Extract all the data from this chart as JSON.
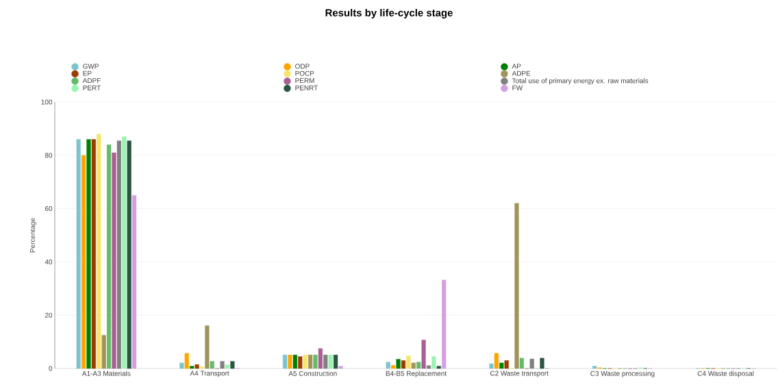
{
  "chart_data": {
    "type": "bar",
    "title": "Results by life-cycle stage",
    "ylabel": "Percentage",
    "categories": [
      "A1-A3 Materials",
      "A4 Transport",
      "A5 Construction",
      "B4-B5 Replacement",
      "C2 Waste transport",
      "C3 Waste processing",
      "C4 Waste disposal"
    ],
    "ylim": [
      0,
      100
    ],
    "yticks": [
      0,
      20,
      40,
      60,
      80,
      100
    ],
    "grid": "y",
    "legend": "top",
    "series": [
      {
        "name": "GWP",
        "color": "#7cc5d0",
        "values": [
          86,
          2.1,
          5.1,
          2.4,
          1.8,
          0.9,
          0
        ]
      },
      {
        "name": "ODP",
        "color": "#ffa500",
        "values": [
          80,
          5.7,
          5.1,
          1.2,
          5.7,
          0.3,
          0
        ]
      },
      {
        "name": "AP",
        "color": "#008000",
        "values": [
          86,
          0.9,
          5.1,
          3.5,
          2.1,
          0,
          0
        ]
      },
      {
        "name": "EP",
        "color": "#9c3d00",
        "values": [
          86,
          1.5,
          4.5,
          3.0,
          3.0,
          0,
          0
        ]
      },
      {
        "name": "POCP",
        "color": "#f5e56b",
        "values": [
          88,
          0.6,
          5.1,
          4.8,
          0,
          0,
          0
        ]
      },
      {
        "name": "ADPE",
        "color": "#a0945a",
        "values": [
          12.5,
          16.1,
          5.1,
          2.1,
          62,
          0,
          0
        ]
      },
      {
        "name": "ADPF",
        "color": "#66bb6a",
        "values": [
          84,
          2.7,
          5.1,
          2.4,
          3.9,
          0,
          0
        ]
      },
      {
        "name": "PERM",
        "color": "#aa5f94",
        "values": [
          81,
          0,
          7.5,
          10.7,
          0,
          0,
          0
        ]
      },
      {
        "name": "Total use of primary energy ex. raw materials",
        "color": "#808080",
        "values": [
          85.5,
          2.7,
          5.1,
          1.1,
          3.6,
          0,
          0
        ]
      },
      {
        "name": "PERT",
        "color": "#98f5b0",
        "values": [
          87,
          1.4,
          5.1,
          4.5,
          0,
          0.3,
          0
        ]
      },
      {
        "name": "PENRT",
        "color": "#2a5540",
        "values": [
          85.5,
          2.7,
          5.1,
          0.9,
          3.9,
          0,
          0
        ]
      },
      {
        "name": "FW",
        "color": "#d49fe0",
        "values": [
          65,
          0,
          0.9,
          33.2,
          0,
          0,
          0
        ]
      }
    ]
  }
}
